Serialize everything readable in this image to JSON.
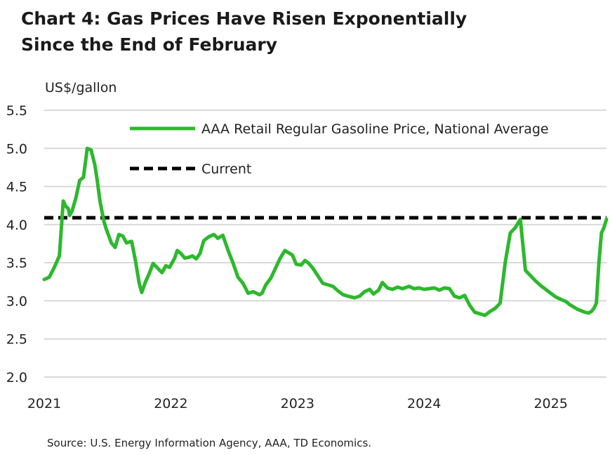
{
  "title_line1": "Chart 4: Gas Prices Have Risen Exponentially",
  "title_line2": "Since the End of February",
  "source": "Source: U.S. Energy Information Agency, AAA, TD Economics.",
  "colors": {
    "series": "#2DB82D",
    "current": "#000000",
    "grid": "#d9d9d9"
  },
  "chart_data": {
    "type": "line",
    "ylabel": "US$/gallon",
    "ylim": [
      2.0,
      5.5
    ],
    "yticks": [
      "2.0",
      "2.5",
      "3.0",
      "3.5",
      "4.0",
      "4.5",
      "5.0",
      "5.5"
    ],
    "xlim": [
      2021.0,
      2025.44
    ],
    "xticks": [
      "2021",
      "2022",
      "2023",
      "2024",
      "2025"
    ],
    "grid": true,
    "legend_position": "top",
    "series": [
      {
        "name": "AAA Retail Regular Gasoline Price, National Average",
        "style": "solid",
        "x": [
          2021.0,
          2021.04,
          2021.08,
          2021.12,
          2021.15,
          2021.17,
          2021.19,
          2021.2,
          2021.22,
          2021.25,
          2021.28,
          2021.31,
          2021.34,
          2021.37,
          2021.4,
          2021.42,
          2021.44,
          2021.47,
          2021.49,
          2021.51,
          2021.53,
          2021.56,
          2021.59,
          2021.62,
          2021.65,
          2021.69,
          2021.72,
          2021.75,
          2021.77,
          2021.8,
          2021.83,
          2021.86,
          2021.9,
          2021.93,
          2021.96,
          2021.99,
          2022.03,
          2022.05,
          2022.08,
          2022.11,
          2022.14,
          2022.17,
          2022.2,
          2022.23,
          2022.26,
          2022.3,
          2022.34,
          2022.37,
          2022.41,
          2022.45,
          2022.49,
          2022.53,
          2022.57,
          2022.61,
          2022.65,
          2022.7,
          2022.72,
          2022.75,
          2022.79,
          2022.83,
          2022.86,
          2022.9,
          2022.93,
          2022.96,
          2022.99,
          2023.03,
          2023.06,
          2023.09,
          2023.12,
          2023.16,
          2023.2,
          2023.24,
          2023.28,
          2023.32,
          2023.36,
          2023.4,
          2023.45,
          2023.49,
          2023.53,
          2023.57,
          2023.6,
          2023.64,
          2023.67,
          2023.71,
          2023.75,
          2023.79,
          2023.83,
          2023.88,
          2023.92,
          2023.96,
          2024.0,
          2024.04,
          2024.08,
          2024.12,
          2024.16,
          2024.2,
          2024.24,
          2024.28,
          2024.32,
          2024.36,
          2024.4,
          2024.44,
          2024.48,
          2024.52,
          2024.56,
          2024.6,
          2024.64,
          2024.68,
          2024.72,
          2024.76,
          2024.8,
          2024.84,
          2024.88,
          2024.92,
          2024.96,
          2025.0,
          2025.04,
          2025.08,
          2025.12,
          2025.15,
          2025.18,
          2025.21,
          2025.24,
          2025.27,
          2025.3,
          2025.32,
          2025.34,
          2025.36,
          2025.38,
          2025.4,
          2025.42,
          2025.44
        ],
        "values": [
          3.28,
          3.31,
          3.44,
          3.59,
          4.31,
          4.24,
          4.21,
          4.12,
          4.18,
          4.35,
          4.58,
          4.62,
          5.0,
          4.98,
          4.78,
          4.56,
          4.31,
          4.05,
          3.94,
          3.85,
          3.76,
          3.7,
          3.87,
          3.85,
          3.76,
          3.78,
          3.53,
          3.23,
          3.11,
          3.25,
          3.36,
          3.49,
          3.42,
          3.37,
          3.46,
          3.44,
          3.56,
          3.66,
          3.62,
          3.56,
          3.57,
          3.59,
          3.55,
          3.62,
          3.79,
          3.84,
          3.87,
          3.82,
          3.86,
          3.67,
          3.5,
          3.31,
          3.23,
          3.1,
          3.12,
          3.08,
          3.1,
          3.21,
          3.3,
          3.44,
          3.55,
          3.66,
          3.63,
          3.6,
          3.48,
          3.47,
          3.53,
          3.49,
          3.43,
          3.33,
          3.23,
          3.21,
          3.19,
          3.13,
          3.08,
          3.06,
          3.04,
          3.06,
          3.12,
          3.15,
          3.09,
          3.14,
          3.24,
          3.17,
          3.15,
          3.18,
          3.16,
          3.19,
          3.16,
          3.17,
          3.15,
          3.16,
          3.17,
          3.14,
          3.17,
          3.16,
          3.06,
          3.04,
          3.07,
          2.94,
          2.85,
          2.83,
          2.81,
          2.86,
          2.9,
          2.97,
          3.5,
          3.89,
          3.96,
          4.07,
          3.4,
          3.33,
          3.26,
          3.2,
          3.15,
          3.1,
          3.05,
          3.02,
          2.99,
          2.95,
          2.92,
          2.89,
          2.87,
          2.85,
          2.84,
          2.86,
          2.9,
          2.97,
          3.5,
          3.89,
          3.96,
          4.07
        ]
      },
      {
        "name": "Current",
        "style": "dashed",
        "value": 4.09
      }
    ]
  }
}
